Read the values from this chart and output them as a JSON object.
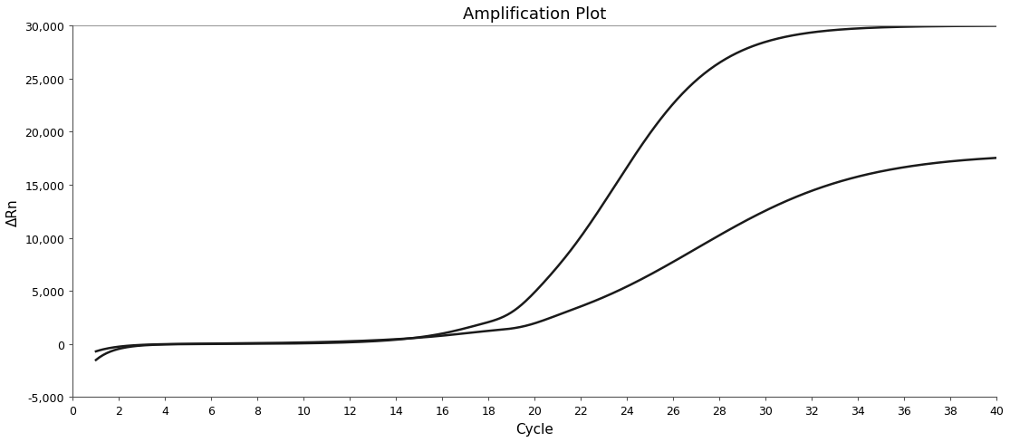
{
  "title": "Amplification Plot",
  "xlabel": "Cycle",
  "ylabel": "ΔRn",
  "xlim": [
    0,
    40
  ],
  "ylim": [
    -5000,
    30000
  ],
  "xticks": [
    0,
    2,
    4,
    6,
    8,
    10,
    12,
    14,
    16,
    18,
    20,
    22,
    24,
    26,
    28,
    30,
    32,
    34,
    36,
    38,
    40
  ],
  "yticks": [
    -5000,
    0,
    5000,
    10000,
    15000,
    20000,
    25000,
    30000
  ],
  "ytick_labels": [
    "-5,000",
    "0",
    "5,000",
    "10,000",
    "15,000",
    "20,000",
    "25,000",
    "30,000"
  ],
  "curve1_color": "#1a1a1a",
  "curve2_color": "#1a1a1a",
  "background_color": "#ffffff",
  "line_width": 1.8,
  "title_fontsize": 13,
  "axis_label_fontsize": 11,
  "tick_fontsize": 9,
  "top_line_color": "#999999"
}
